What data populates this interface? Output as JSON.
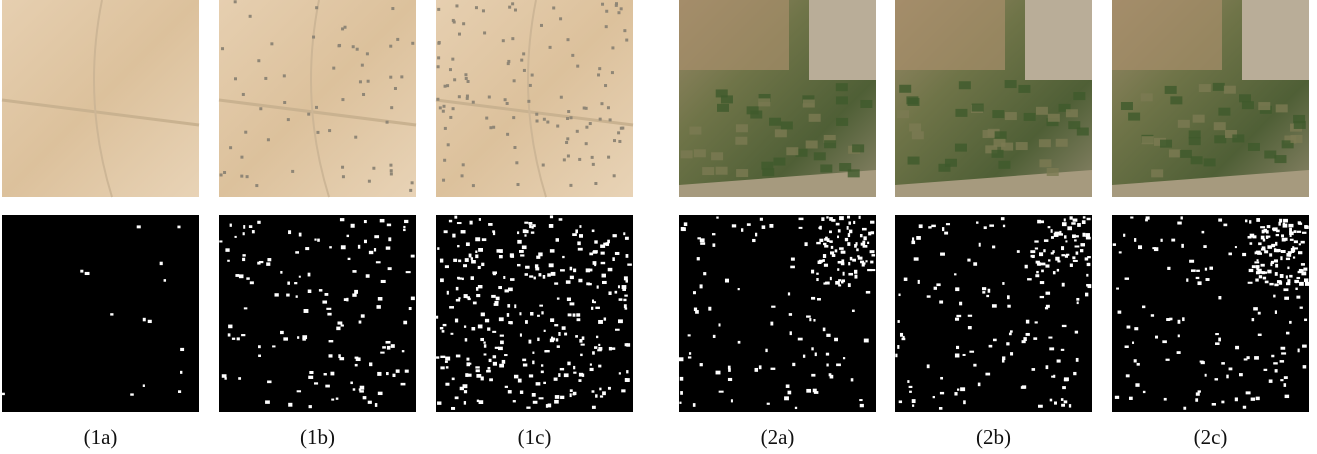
{
  "panels": [
    {
      "label": "(1a)"
    },
    {
      "label": "(1b)"
    },
    {
      "label": "(1c)"
    },
    {
      "label": "(2a)"
    },
    {
      "label": "(2b)"
    },
    {
      "label": "(2c)"
    }
  ]
}
